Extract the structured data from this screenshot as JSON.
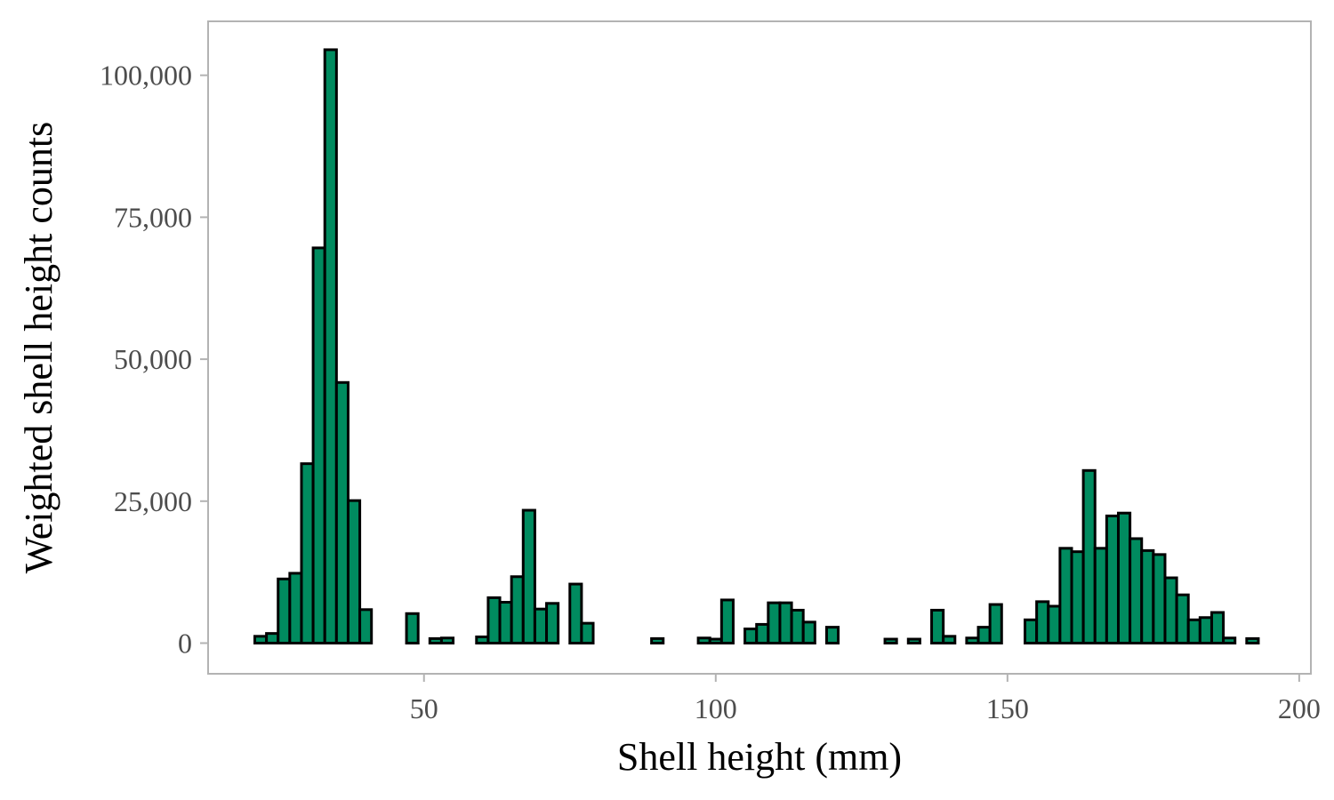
{
  "chart_data": {
    "type": "bar",
    "title": "",
    "xlabel": "Shell height (mm)",
    "ylabel": "Weighted shell height counts",
    "xlim": [
      13,
      202
    ],
    "ylim": [
      -5400,
      109500
    ],
    "x_ticks": [
      50,
      100,
      150,
      200
    ],
    "x_tick_labels": [
      "50",
      "100",
      "150",
      "200"
    ],
    "y_ticks": [
      0,
      25000,
      50000,
      75000,
      100000
    ],
    "y_tick_labels": [
      "0",
      "25,000",
      "50,000",
      "75,000",
      "100,000"
    ],
    "grid": false,
    "bin_width": 2,
    "bar_fill": "#008b5f",
    "bar_stroke": "#000000",
    "panel_border": "#b3b3b3",
    "bin_centers": [
      22,
      24,
      26,
      28,
      30,
      32,
      34,
      36,
      38,
      40,
      42,
      44,
      46,
      48,
      50,
      52,
      54,
      56,
      58,
      60,
      62,
      64,
      66,
      68,
      70,
      72,
      74,
      76,
      78,
      80,
      82,
      84,
      86,
      88,
      90,
      92,
      94,
      96,
      98,
      100,
      102,
      104,
      106,
      108,
      110,
      112,
      114,
      116,
      118,
      120,
      122,
      124,
      126,
      128,
      130,
      132,
      134,
      136,
      138,
      140,
      142,
      144,
      146,
      148,
      150,
      152,
      154,
      156,
      158,
      160,
      162,
      164,
      166,
      168,
      170,
      172,
      174,
      176,
      178,
      180,
      182,
      184,
      186,
      188,
      190,
      192
    ],
    "values": [
      1200,
      1700,
      11300,
      12300,
      31600,
      69600,
      104500,
      45900,
      25100,
      5900,
      0,
      0,
      0,
      5200,
      0,
      800,
      900,
      0,
      0,
      1100,
      8000,
      7200,
      11700,
      23400,
      6000,
      7000,
      0,
      10400,
      3500,
      0,
      0,
      0,
      0,
      0,
      800,
      0,
      0,
      0,
      900,
      700,
      7600,
      0,
      2500,
      3300,
      7100,
      7100,
      5800,
      3700,
      0,
      2800,
      0,
      0,
      0,
      0,
      700,
      0,
      700,
      0,
      5800,
      1200,
      0,
      900,
      2800,
      6800,
      0,
      0,
      4100,
      7300,
      6500,
      16700,
      16100,
      30400,
      16700,
      22400,
      22900,
      18400,
      16300,
      15600,
      11500,
      8500,
      4100,
      4500,
      5400,
      900,
      0,
      800
    ]
  }
}
